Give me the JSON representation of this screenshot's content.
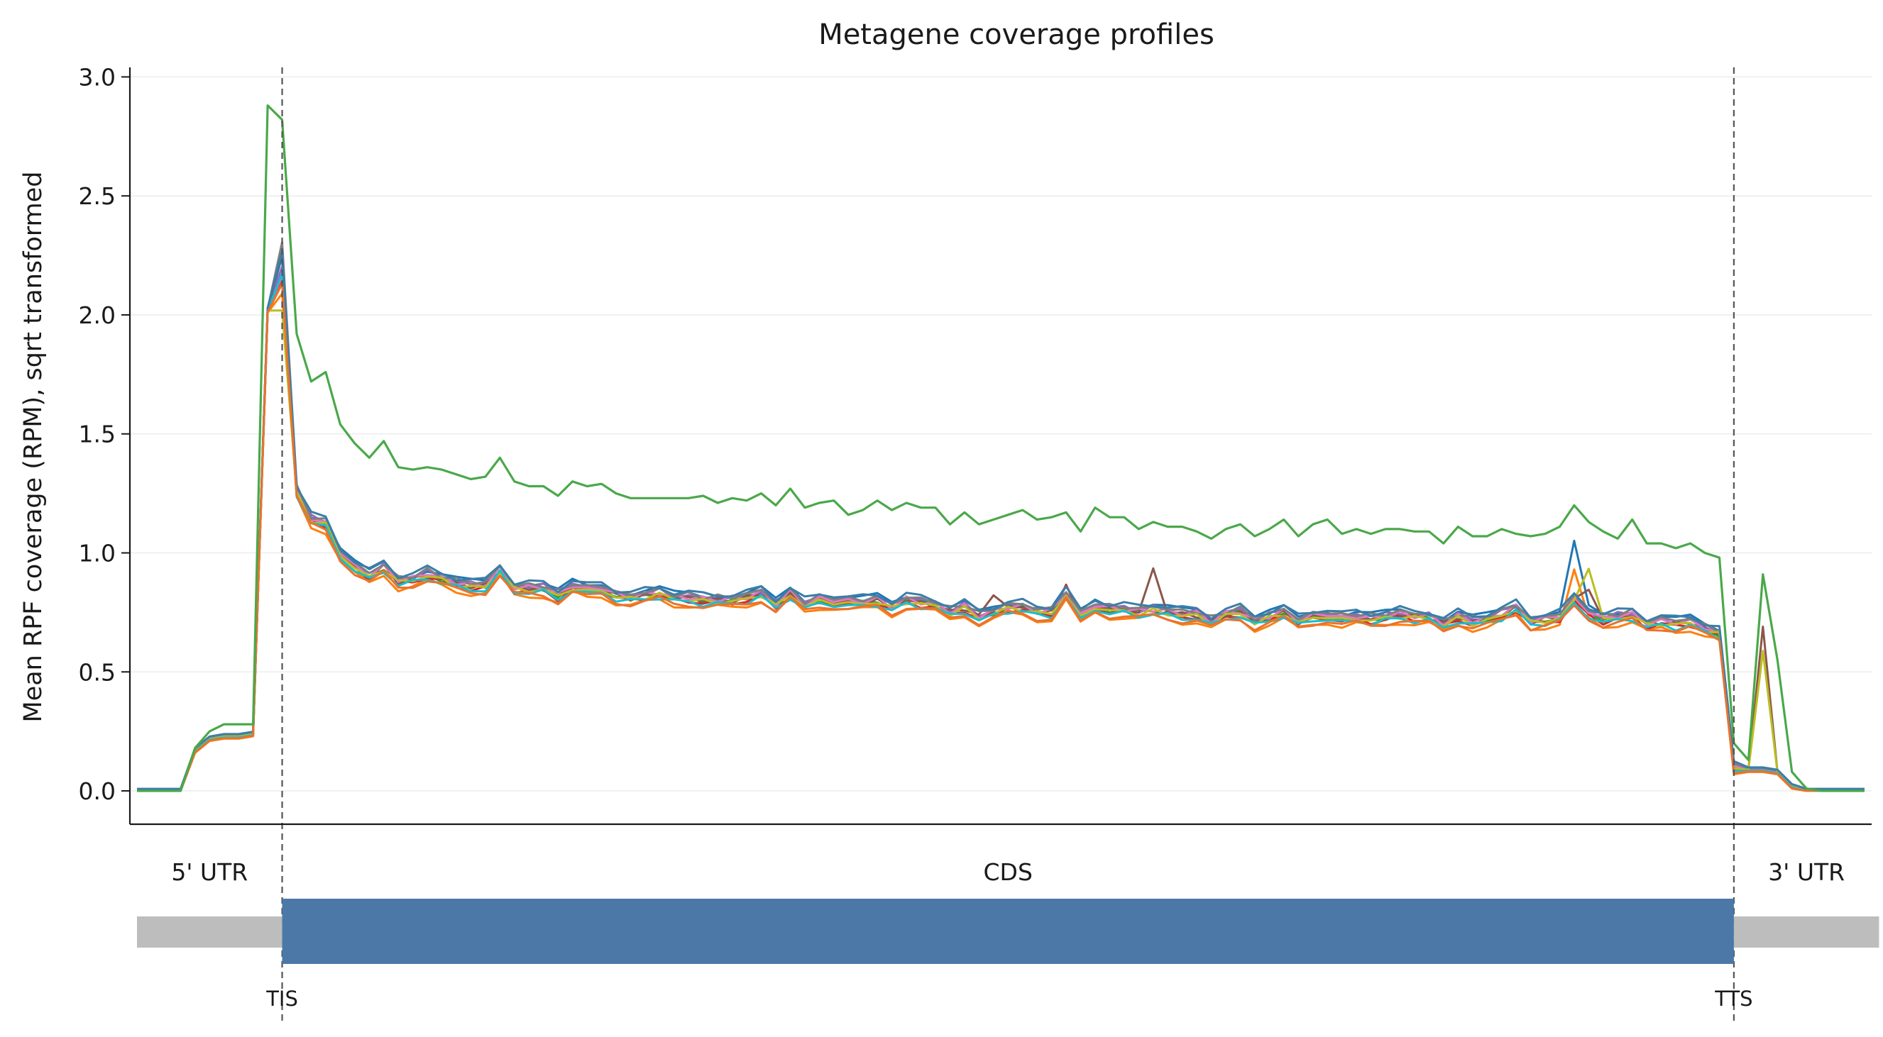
{
  "chart_data": {
    "type": "line",
    "title": "Metagene coverage profiles",
    "ylabel": "Mean RPF coverage (RPM), sqrt transformed",
    "xlabel": "",
    "ylim": [
      -0.14,
      3.04
    ],
    "yticks": [
      0.0,
      0.5,
      1.0,
      1.5,
      2.0,
      2.5,
      3.0
    ],
    "grid": "horizontal",
    "legend": "none",
    "x_structure": {
      "utr5_bins": 10,
      "cds_bins": 100,
      "utr3_bins": 10,
      "note_x": "x is bin index 0-120; TIS at bin 10, TTS at bin 110"
    },
    "markers": [
      {
        "label": "TIS",
        "x": 10
      },
      {
        "label": "TTS",
        "x": 110
      }
    ],
    "regions": [
      {
        "label": "5' UTR",
        "from": 0,
        "to": 10,
        "kind": "utr"
      },
      {
        "label": "CDS",
        "from": 10,
        "to": 110,
        "kind": "cds"
      },
      {
        "label": "3' UTR",
        "from": 110,
        "to": 120,
        "kind": "utr"
      }
    ],
    "profile_highlighted": [
      0,
      0,
      0,
      0,
      0.18,
      0.25,
      0.28,
      0.28,
      0.28,
      2.88,
      2.82,
      1.92,
      1.72,
      1.76,
      1.54,
      1.46,
      1.4,
      1.47,
      1.36,
      1.35,
      1.36,
      1.35,
      1.33,
      1.31,
      1.32,
      1.4,
      1.3,
      1.28,
      1.28,
      1.24,
      1.3,
      1.28,
      1.29,
      1.25,
      1.23,
      1.23,
      1.23,
      1.23,
      1.23,
      1.24,
      1.21,
      1.23,
      1.22,
      1.25,
      1.2,
      1.27,
      1.19,
      1.21,
      1.22,
      1.16,
      1.18,
      1.22,
      1.18,
      1.21,
      1.19,
      1.19,
      1.12,
      1.17,
      1.12,
      1.14,
      1.16,
      1.18,
      1.14,
      1.15,
      1.17,
      1.09,
      1.19,
      1.15,
      1.15,
      1.1,
      1.13,
      1.11,
      1.11,
      1.09,
      1.06,
      1.1,
      1.12,
      1.07,
      1.1,
      1.14,
      1.07,
      1.12,
      1.14,
      1.08,
      1.1,
      1.08,
      1.1,
      1.1,
      1.09,
      1.09,
      1.04,
      1.11,
      1.07,
      1.07,
      1.1,
      1.08,
      1.07,
      1.08,
      1.11,
      1.2,
      1.13,
      1.09,
      1.06,
      1.14,
      1.04,
      1.04,
      1.02,
      1.04,
      1.0,
      0.98,
      0.2,
      0.13,
      0.91,
      0.55,
      0.08,
      0.01,
      0,
      0,
      0,
      0
    ],
    "profile_base": [
      0,
      0,
      0,
      0,
      0.17,
      0.22,
      0.23,
      0.23,
      0.24,
      2.02,
      2.12,
      1.26,
      1.14,
      1.12,
      1.0,
      0.94,
      0.9,
      0.94,
      0.88,
      0.89,
      0.91,
      0.89,
      0.87,
      0.86,
      0.86,
      0.93,
      0.85,
      0.85,
      0.85,
      0.82,
      0.86,
      0.84,
      0.85,
      0.82,
      0.81,
      0.82,
      0.83,
      0.81,
      0.81,
      0.8,
      0.8,
      0.8,
      0.81,
      0.83,
      0.78,
      0.83,
      0.78,
      0.8,
      0.8,
      0.79,
      0.79,
      0.8,
      0.77,
      0.8,
      0.79,
      0.78,
      0.75,
      0.77,
      0.73,
      0.75,
      0.77,
      0.77,
      0.75,
      0.75,
      0.83,
      0.73,
      0.78,
      0.76,
      0.76,
      0.75,
      0.76,
      0.75,
      0.74,
      0.74,
      0.71,
      0.74,
      0.75,
      0.71,
      0.73,
      0.75,
      0.71,
      0.73,
      0.74,
      0.72,
      0.73,
      0.72,
      0.73,
      0.74,
      0.73,
      0.73,
      0.7,
      0.73,
      0.71,
      0.72,
      0.74,
      0.77,
      0.71,
      0.72,
      0.73,
      0.8,
      0.75,
      0.72,
      0.73,
      0.74,
      0.7,
      0.71,
      0.7,
      0.71,
      0.68,
      0.66,
      0.1,
      0.09,
      0.09,
      0.08,
      0.02,
      0,
      0,
      0,
      0,
      0
    ],
    "series": [
      {
        "color": "#1f77b4",
        "offset": 0.02,
        "spikes": [
          [
            99,
            0.22
          ],
          [
            10,
            0.12
          ]
        ]
      },
      {
        "color": "#ff7f0e",
        "offset": -0.03,
        "spikes": [
          [
            99,
            0.15
          ],
          [
            10,
            -0.02
          ]
        ]
      },
      {
        "color": "#2ca02c",
        "offset": 0.0,
        "spikes": [
          [
            10,
            0.05
          ]
        ]
      },
      {
        "color": "#d62728",
        "offset": -0.01,
        "spikes": [
          [
            64,
            0.05
          ],
          [
            10,
            0.03
          ]
        ]
      },
      {
        "color": "#9467bd",
        "offset": 0.01,
        "spikes": [
          [
            10,
            0.08
          ]
        ]
      },
      {
        "color": "#8c564b",
        "offset": 0.0,
        "spikes": [
          [
            59,
            0.08
          ],
          [
            70,
            0.17
          ],
          [
            100,
            0.1
          ],
          [
            112,
            0.6
          ],
          [
            10,
            0.15
          ]
        ]
      },
      {
        "color": "#e377c2",
        "offset": 0.005,
        "spikes": [
          [
            10,
            0.04
          ]
        ]
      },
      {
        "color": "#7f7f7f",
        "offset": 0.015,
        "spikes": [
          [
            10,
            0.18
          ]
        ]
      },
      {
        "color": "#bcbd22",
        "offset": -0.005,
        "spikes": [
          [
            100,
            0.2
          ],
          [
            112,
            0.5
          ],
          [
            10,
            -0.1
          ]
        ]
      },
      {
        "color": "#17becf",
        "offset": -0.015,
        "spikes": [
          [
            10,
            0.06
          ]
        ]
      },
      {
        "color": "#3b7ea8",
        "offset": 0.025,
        "spikes": [
          [
            10,
            0.14
          ]
        ]
      },
      {
        "color": "#e8732f",
        "offset": -0.025,
        "spikes": [
          [
            10,
            0.02
          ]
        ]
      }
    ],
    "highlight_color": "#4aa84a"
  },
  "colors": {
    "cds": "#4c78a8",
    "utr": "#bdbdbd",
    "grid": "#ececec",
    "dash": "#555555"
  }
}
